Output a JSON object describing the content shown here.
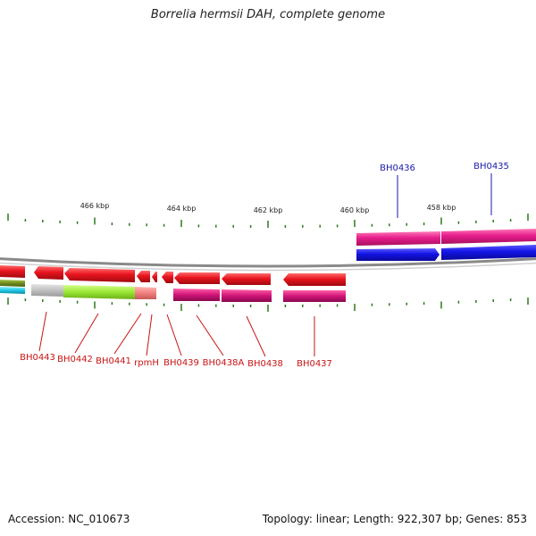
{
  "title": "Borrelia hermsii DAH, complete genome",
  "accession_text": "Accession: NC_010673",
  "summary_text": "Topology: linear; Length: 922,307 bp; Genes: 853",
  "scale_labels": [
    "466 kbp",
    "464 kbp",
    "462 kbp",
    "460 kbp",
    "458 kbp"
  ],
  "gene_labels_forward": [
    "BH0436",
    "BH0435"
  ],
  "gene_labels_reverse": [
    "BH0443",
    "BH0442",
    "BH0441",
    "rpmH",
    "BH0439",
    "BH0438A",
    "BH0438",
    "BH0437"
  ],
  "colors": {
    "forward_label": "#1a1aa8",
    "reverse_label": "#c81414",
    "gene_red": "#e8141e",
    "gene_blue": "#1414e6",
    "gene_magenta": "#e61e8c",
    "gene_green": "#9ae632",
    "gene_gray": "#c0c0c0",
    "gene_pink": "#f08080",
    "tick": "#2a7a1a"
  }
}
